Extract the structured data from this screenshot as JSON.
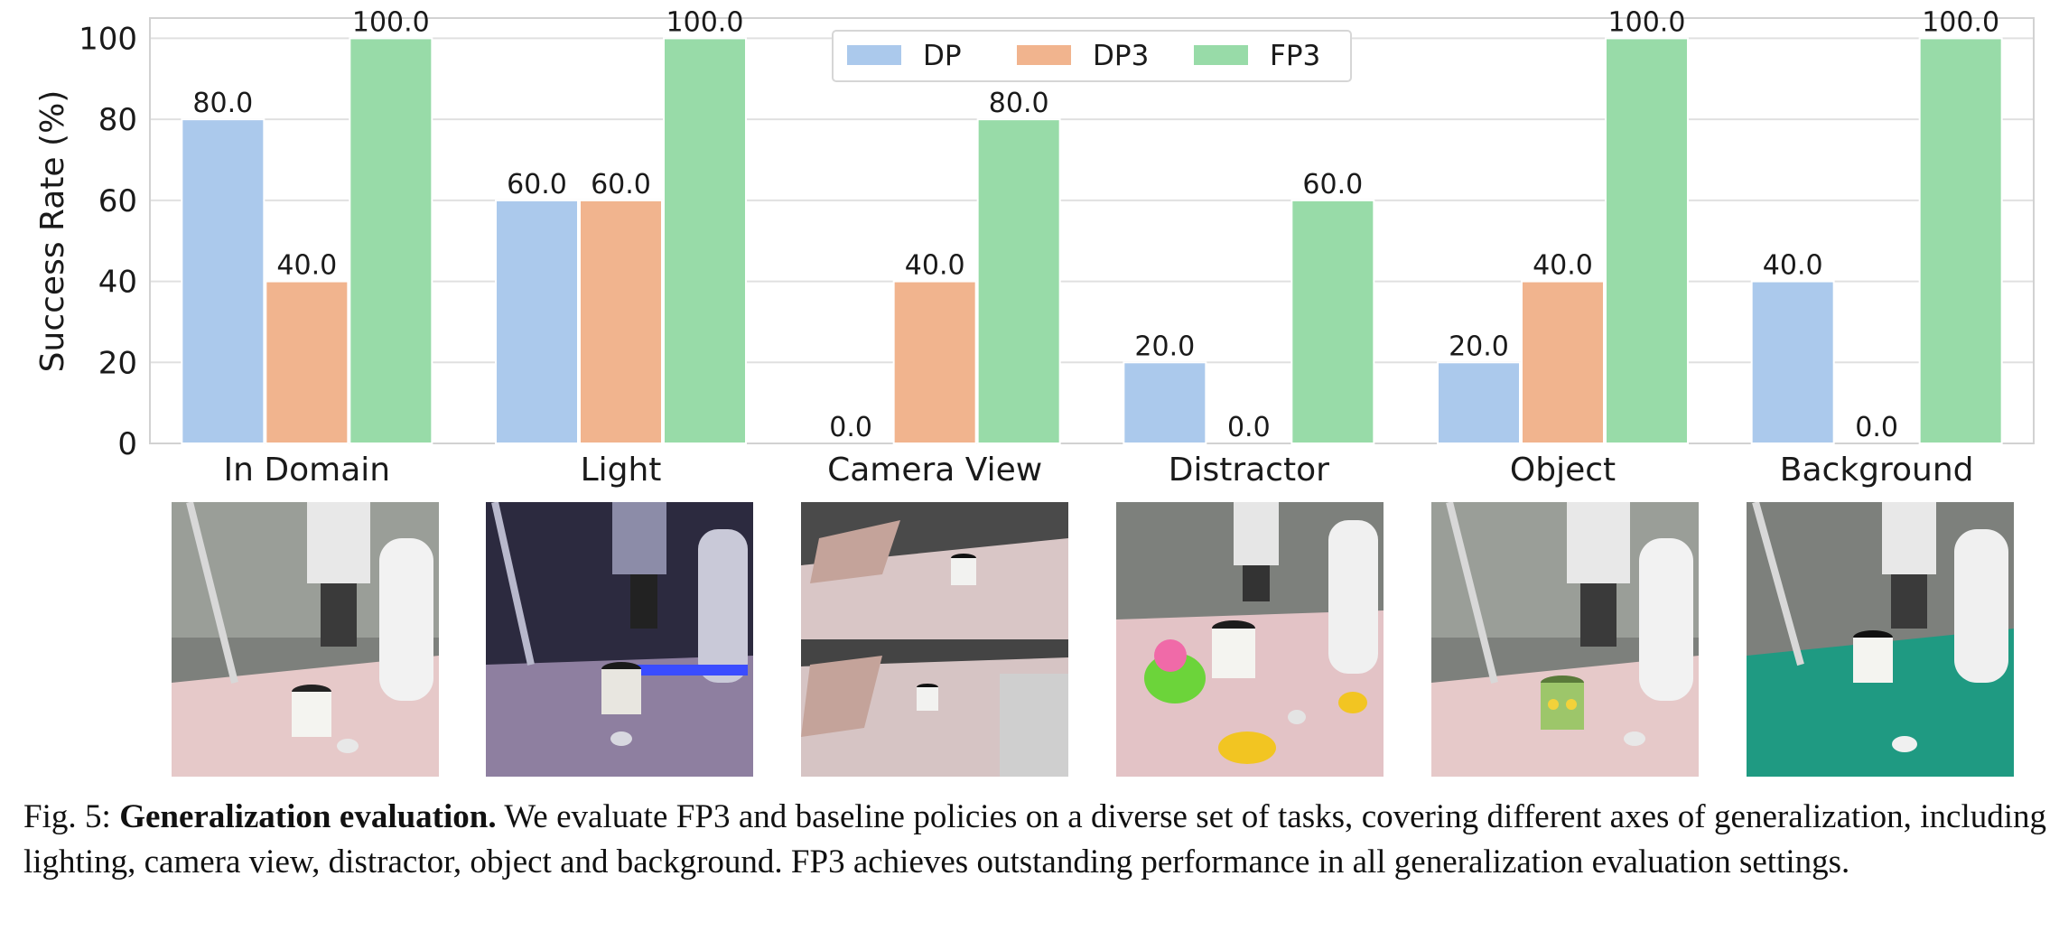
{
  "chart_data": {
    "type": "bar",
    "categories": [
      "In Domain",
      "Light",
      "Camera View",
      "Distractor",
      "Object",
      "Background"
    ],
    "series": [
      {
        "name": "DP",
        "color": "#abc9ec",
        "values": [
          80,
          60,
          0,
          20,
          20,
          40
        ]
      },
      {
        "name": "DP3",
        "color": "#f1b48e",
        "values": [
          40,
          60,
          40,
          0,
          40,
          0
        ]
      },
      {
        "name": "FP3",
        "color": "#98dba8",
        "values": [
          100,
          100,
          80,
          60,
          100,
          100
        ]
      }
    ],
    "data_labels": [
      [
        "80.0",
        "40.0",
        "100.0"
      ],
      [
        "60.0",
        "60.0",
        "100.0"
      ],
      [
        "0.0",
        "40.0",
        "80.0"
      ],
      [
        "20.0",
        "0.0",
        "60.0"
      ],
      [
        "20.0",
        "40.0",
        "100.0"
      ],
      [
        "40.0",
        "0.0",
        "100.0"
      ]
    ],
    "ylabel": "Success Rate (%)",
    "ylim": [
      0,
      105
    ],
    "yticks": [
      "0",
      "20",
      "40",
      "60",
      "80",
      "100"
    ],
    "grid": "horizontal",
    "legend": "top-center"
  },
  "caption": {
    "prefix": "Fig. 5: ",
    "bold": "Generalization evaluation.",
    "text": " We evaluate FP3 and baseline policies on a diverse set of tasks, covering different axes of generalization, including lighting, camera view, distractor, object and background. FP3 achieves outstanding performance in all generalization evaluation settings."
  }
}
